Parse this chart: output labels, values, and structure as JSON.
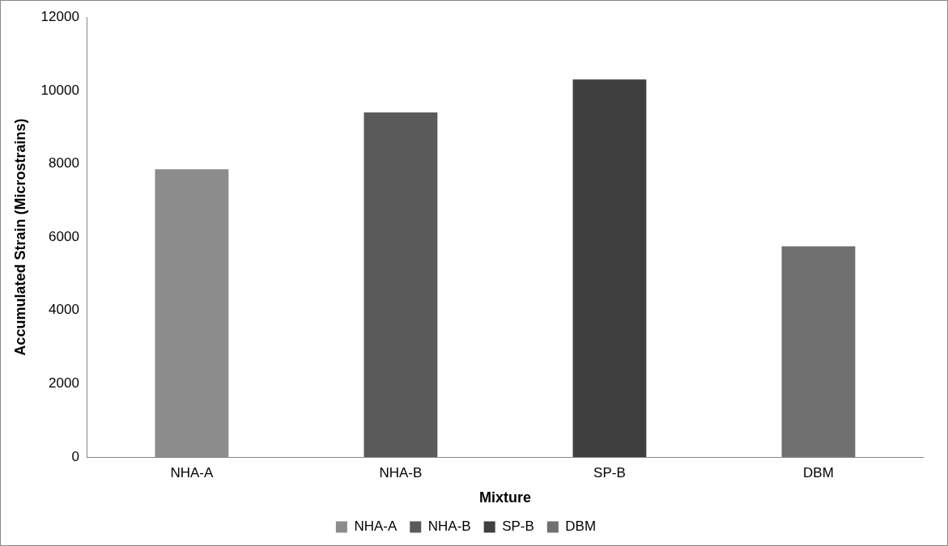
{
  "chart_data": {
    "type": "bar",
    "xlabel": "Mixture",
    "ylabel": "Accumulated Strain (Microstrains)",
    "categories": [
      "NHA-A",
      "NHA-B",
      "SP-B",
      "DBM"
    ],
    "series": [
      {
        "name": "NHA-A",
        "color": "#8c8c8c",
        "values": [
          7850,
          null,
          null,
          null
        ]
      },
      {
        "name": "NHA-B",
        "color": "#5a5a5a",
        "values": [
          null,
          9400,
          null,
          null
        ]
      },
      {
        "name": "SP-B",
        "color": "#404040",
        "values": [
          null,
          null,
          10300,
          null
        ]
      },
      {
        "name": "DBM",
        "color": "#707070",
        "values": [
          null,
          null,
          null,
          5750
        ]
      }
    ],
    "ylim": [
      0,
      12000
    ],
    "yticks": [
      0,
      2000,
      4000,
      6000,
      8000,
      10000,
      12000
    ],
    "grid": false,
    "legend": "bottom"
  }
}
